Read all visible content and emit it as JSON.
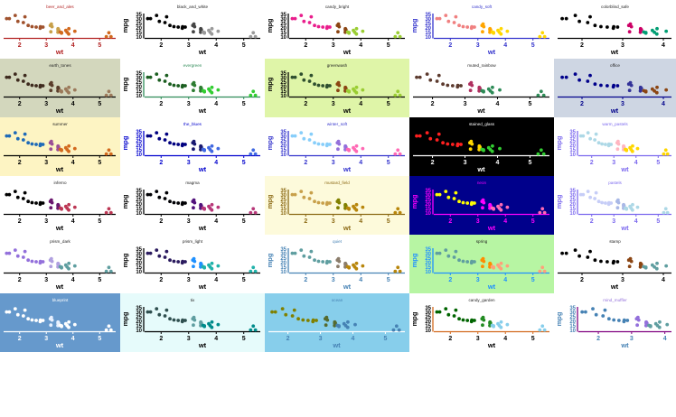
{
  "chart_data": {
    "type": "scatter",
    "x_variable": "wt",
    "y_variable": "mpg",
    "xlabel": "wt",
    "ylabel": "mpg",
    "y_ticks": [
      10,
      15,
      20,
      25,
      30,
      35
    ],
    "x_ticks": [
      2,
      3,
      4,
      5
    ],
    "points": [
      {
        "wt": 1.513,
        "mpg": 30.4
      },
      {
        "wt": 1.615,
        "mpg": 30.4
      },
      {
        "wt": 1.835,
        "mpg": 33.9
      },
      {
        "wt": 1.935,
        "mpg": 27.3
      },
      {
        "wt": 2.14,
        "mpg": 26.0
      },
      {
        "wt": 2.2,
        "mpg": 32.4
      },
      {
        "wt": 2.32,
        "mpg": 22.8
      },
      {
        "wt": 2.465,
        "mpg": 21.5
      },
      {
        "wt": 2.62,
        "mpg": 21.0
      },
      {
        "wt": 2.77,
        "mpg": 19.7
      },
      {
        "wt": 2.78,
        "mpg": 21.4
      },
      {
        "wt": 2.875,
        "mpg": 21.0
      },
      {
        "wt": 3.15,
        "mpg": 22.8
      },
      {
        "wt": 3.17,
        "mpg": 15.8
      },
      {
        "wt": 3.19,
        "mpg": 24.4
      },
      {
        "wt": 3.215,
        "mpg": 21.4
      },
      {
        "wt": 3.435,
        "mpg": 15.2
      },
      {
        "wt": 3.44,
        "mpg": 18.7
      },
      {
        "wt": 3.44,
        "mpg": 19.2
      },
      {
        "wt": 3.44,
        "mpg": 17.8
      },
      {
        "wt": 3.46,
        "mpg": 18.1
      },
      {
        "wt": 3.52,
        "mpg": 15.5
      },
      {
        "wt": 3.57,
        "mpg": 14.3
      },
      {
        "wt": 3.57,
        "mpg": 15.0
      },
      {
        "wt": 3.73,
        "mpg": 17.3
      },
      {
        "wt": 3.78,
        "mpg": 15.2
      },
      {
        "wt": 3.84,
        "mpg": 13.3
      },
      {
        "wt": 3.845,
        "mpg": 19.2
      },
      {
        "wt": 4.07,
        "mpg": 16.4
      },
      {
        "wt": 5.25,
        "mpg": 10.4
      },
      {
        "wt": 5.345,
        "mpg": 14.7
      },
      {
        "wt": 5.424,
        "mpg": 10.4
      }
    ],
    "panels": [
      {
        "title": "beer_and_ales",
        "bg": "#ffffff",
        "title_color": "#b22222",
        "axis_color": "#b22222",
        "text_color": "#b22222",
        "palette": [
          "#a0522d",
          "#c8a04a",
          "#d2691e"
        ],
        "show_y": false,
        "xlim": [
          1.4,
          5.6
        ]
      },
      {
        "title": "black_and_white",
        "bg": "#ffffff",
        "title_color": "#222222",
        "axis_color": "#000000",
        "text_color": "#000000",
        "palette": [
          "#000000",
          "#444444",
          "#999999"
        ],
        "show_y": true,
        "xlim": [
          1.4,
          5.6
        ]
      },
      {
        "title": "candy_bright",
        "bg": "#ffffff",
        "title_color": "#222222",
        "axis_color": "#000000",
        "text_color": "#000000",
        "palette": [
          "#e91e8c",
          "#8b4513",
          "#9acd32"
        ],
        "show_y": true,
        "xlim": [
          1.4,
          5.6
        ]
      },
      {
        "title": "candy_soft",
        "bg": "#ffffff",
        "title_color": "#3333cc",
        "axis_color": "#3333cc",
        "text_color": "#3333cc",
        "palette": [
          "#f08080",
          "#ffa500",
          "#ffd700"
        ],
        "show_y": true,
        "xlim": [
          1.4,
          5.6
        ]
      },
      {
        "title": "colorblind_safe",
        "bg": "#ffffff",
        "title_color": "#222222",
        "axis_color": "#000000",
        "text_color": "#000000",
        "palette": [
          "#000000",
          "#cc0066",
          "#009e73"
        ],
        "show_y": false,
        "xlim": [
          1.4,
          4.2
        ]
      },
      {
        "title": "earth_tones",
        "bg": "#d3d7bd",
        "title_color": "#222222",
        "axis_color": "#000000",
        "text_color": "#000000",
        "palette": [
          "#3e2a1e",
          "#5a3d2b",
          "#9c7a5b"
        ],
        "show_y": false,
        "xlim": [
          1.4,
          5.6
        ]
      },
      {
        "title": "evergreen",
        "bg": "#ffffff",
        "title_color": "#2e8b57",
        "axis_color": "#2e8b57",
        "text_color": "#000000",
        "palette": [
          "#1b5e20",
          "#2e7d32",
          "#32cd32"
        ],
        "show_y": true,
        "xlim": [
          1.4,
          5.6
        ]
      },
      {
        "title": "greenwash",
        "bg": "#dff5a8",
        "title_color": "#222222",
        "axis_color": "#000000",
        "text_color": "#000000",
        "palette": [
          "#2f4f2f",
          "#8b4513",
          "#9acd32"
        ],
        "show_y": true,
        "xlim": [
          1.4,
          5.6
        ]
      },
      {
        "title": "muted_rainbow",
        "bg": "#ffffff",
        "title_color": "#222222",
        "axis_color": "#000000",
        "text_color": "#000000",
        "palette": [
          "#5c3a2e",
          "#b03060",
          "#2e8b57"
        ],
        "show_y": false,
        "xlim": [
          1.4,
          5.6
        ]
      },
      {
        "title": "office",
        "bg": "#ced6e3",
        "title_color": "#222222",
        "axis_color": "#00008b",
        "text_color": "#00008b",
        "palette": [
          "#00008b",
          "#333399",
          "#8b4513"
        ],
        "show_y": false,
        "xlim": [
          1.4,
          4.2
        ]
      },
      {
        "title": "summer",
        "bg": "#fdf4c3",
        "title_color": "#222222",
        "axis_color": "#000000",
        "text_color": "#000000",
        "palette": [
          "#1e6ab8",
          "#9b4f96",
          "#d2691e"
        ],
        "show_y": false,
        "xlim": [
          1.4,
          5.6
        ]
      },
      {
        "title": "the_blues",
        "bg": "#ffffff",
        "title_color": "#0000cd",
        "axis_color": "#0000cd",
        "text_color": "#0000cd",
        "palette": [
          "#000080",
          "#191970",
          "#4169e1"
        ],
        "show_y": true,
        "xlim": [
          1.4,
          5.6
        ]
      },
      {
        "title": "winter_soft",
        "bg": "#ffffff",
        "title_color": "#3333cc",
        "axis_color": "#3333cc",
        "text_color": "#3333cc",
        "palette": [
          "#87cefa",
          "#9370db",
          "#ff69b4"
        ],
        "show_y": true,
        "xlim": [
          1.4,
          5.6
        ]
      },
      {
        "title": "stained_glass",
        "bg": "#000000",
        "title_color": "#ffffff",
        "axis_color": "#ffffff",
        "text_color": "#ffffff",
        "palette": [
          "#ff2020",
          "#ffd700",
          "#32cd32"
        ],
        "show_y": false,
        "xlim": [
          1.4,
          5.6
        ]
      },
      {
        "title": "warm_pastels",
        "bg": "#ffffff",
        "title_color": "#7b68ee",
        "axis_color": "#7b68ee",
        "text_color": "#7b68ee",
        "palette": [
          "#add8e6",
          "#ffb6c1",
          "#ffd700"
        ],
        "show_y": true,
        "xlim": [
          1.4,
          5.6
        ]
      },
      {
        "title": "inferno",
        "bg": "#ffffff",
        "title_color": "#222222",
        "axis_color": "#000000",
        "text_color": "#000000",
        "palette": [
          "#000000",
          "#6a176e",
          "#bc3754"
        ],
        "show_y": false,
        "xlim": [
          1.4,
          5.6
        ]
      },
      {
        "title": "magma",
        "bg": "#ffffff",
        "title_color": "#222222",
        "axis_color": "#000000",
        "text_color": "#000000",
        "palette": [
          "#000004",
          "#51127c",
          "#b73779"
        ],
        "show_y": true,
        "xlim": [
          1.4,
          5.6
        ]
      },
      {
        "title": "mustard_field",
        "bg": "#fdfadb",
        "title_color": "#8b6914",
        "axis_color": "#8b6914",
        "text_color": "#8b6914",
        "palette": [
          "#c8a04a",
          "#808000",
          "#b8860b"
        ],
        "show_y": true,
        "xlim": [
          1.4,
          5.6
        ]
      },
      {
        "title": "neon",
        "bg": "#00008b",
        "title_color": "#ff00ff",
        "axis_color": "#ff00ff",
        "text_color": "#ff00ff",
        "palette": [
          "#ffff00",
          "#ff00ff",
          "#ff69b4"
        ],
        "show_y": true,
        "xlim": [
          1.4,
          5.6
        ]
      },
      {
        "title": "pastels",
        "bg": "#ffffff",
        "title_color": "#7b68ee",
        "axis_color": "#7b68ee",
        "text_color": "#7b68ee",
        "palette": [
          "#c6cdf7",
          "#a9b8e6",
          "#add8e6"
        ],
        "show_y": true,
        "xlim": [
          1.4,
          5.6
        ]
      },
      {
        "title": "prism_dark",
        "bg": "#ffffff",
        "title_color": "#222222",
        "axis_color": "#000000",
        "text_color": "#000000",
        "palette": [
          "#9370db",
          "#b0a0e0",
          "#5f9ea0"
        ],
        "show_y": false,
        "xlim": [
          1.4,
          5.6
        ]
      },
      {
        "title": "prism_light",
        "bg": "#ffffff",
        "title_color": "#222222",
        "axis_color": "#000000",
        "text_color": "#000000",
        "palette": [
          "#2a1a5e",
          "#1e90ff",
          "#20b2aa"
        ],
        "show_y": true,
        "xlim": [
          1.4,
          5.6
        ]
      },
      {
        "title": "quiet",
        "bg": "#ffffff",
        "title_color": "#4682b4",
        "axis_color": "#4682b4",
        "text_color": "#4682b4",
        "palette": [
          "#5f9ea0",
          "#8b7d6b",
          "#b8860b"
        ],
        "show_y": true,
        "xlim": [
          1.4,
          5.6
        ]
      },
      {
        "title": "spring",
        "bg": "#b7f5a3",
        "title_color": "#222222",
        "axis_color": "#1e90ff",
        "text_color": "#1e90ff",
        "palette": [
          "#5f9ea0",
          "#ff8c00",
          "#ffa07a"
        ],
        "show_y": true,
        "xlim": [
          1.4,
          5.6
        ]
      },
      {
        "title": "stamp",
        "bg": "#ffffff",
        "title_color": "#222222",
        "axis_color": "#000000",
        "text_color": "#000000",
        "palette": [
          "#000000",
          "#8b4513",
          "#5f9ea0"
        ],
        "show_y": false,
        "xlim": [
          1.4,
          4.2
        ]
      },
      {
        "title": "blueprint",
        "bg": "#6699cc",
        "title_color": "#ffffff",
        "axis_color": "#ffffff",
        "text_color": "#ffffff",
        "palette": [
          "#ffffff",
          "#e6f0ff",
          "#ffffff"
        ],
        "show_y": false,
        "xlim": [
          1.4,
          5.6
        ]
      },
      {
        "title": "tix",
        "bg": "#e6fbfb",
        "title_color": "#222222",
        "axis_color": "#000000",
        "text_color": "#000000",
        "palette": [
          "#2f4f4f",
          "#5f9ea0",
          "#008b8b"
        ],
        "show_y": true,
        "xlim": [
          1.4,
          5.6
        ]
      },
      {
        "title": "ocean",
        "bg": "#87ceeb",
        "title_color": "#4682b4",
        "axis_color": "#ffffff",
        "text_color": "#4682b4",
        "palette": [
          "#808000",
          "#556b2f",
          "#4682b4"
        ],
        "show_y": false,
        "xlim": [
          1.4,
          5.6
        ]
      },
      {
        "title": "candy_garden",
        "bg": "#ffffff",
        "title_color": "#222222",
        "axis_color": "#d2691e",
        "text_color": "#000000",
        "palette": [
          "#006400",
          "#228b22",
          "#87ceeb"
        ],
        "show_y": true,
        "xlim": [
          1.4,
          5.6
        ]
      },
      {
        "title": "mind_muffler",
        "bg": "#ffffff",
        "title_color": "#9370db",
        "axis_color": "#800080",
        "text_color": "#4682b4",
        "palette": [
          "#4682b4",
          "#9370db",
          "#5f9ea0"
        ],
        "show_y": true,
        "xlim": [
          1.4,
          4.2
        ]
      }
    ]
  }
}
